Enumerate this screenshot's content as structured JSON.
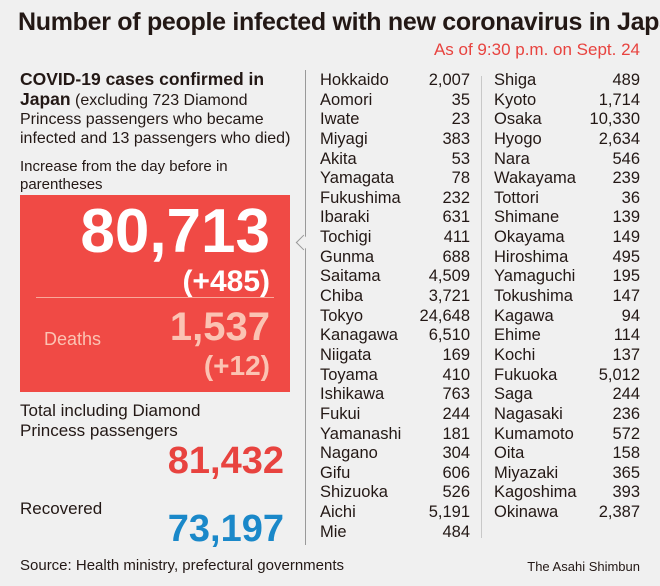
{
  "title": "Number of people infected with new coronavirus in Japan",
  "as_of": "As of 9:30 p.m. on Sept. 24",
  "intro": {
    "heading": "COVID-19 cases confirmed in Japan",
    "detail": "(excluding 723 Diamond Princess passengers who became infected and 13 passengers who died)"
  },
  "note": "Increase from the day before in parentheses",
  "summary": {
    "total": "80,713",
    "total_increase": "(+485)",
    "deaths_label": "Deaths",
    "deaths": "1,537",
    "deaths_increase": "(+12)",
    "including_label": "Total including Diamond Princess passengers",
    "including_total": "81,432",
    "recovered_label": "Recovered",
    "recovered": "73,197"
  },
  "colors": {
    "red": "#f04a45",
    "accent_red": "#e8433f",
    "blue": "#1a88c9",
    "background": "#f0f0f0"
  },
  "prefectures_col1": [
    {
      "name": "Hokkaido",
      "cases": "2,007"
    },
    {
      "name": "Aomori",
      "cases": "35"
    },
    {
      "name": "Iwate",
      "cases": "23"
    },
    {
      "name": "Miyagi",
      "cases": "383"
    },
    {
      "name": "Akita",
      "cases": "53"
    },
    {
      "name": "Yamagata",
      "cases": "78"
    },
    {
      "name": "Fukushima",
      "cases": "232"
    },
    {
      "name": "Ibaraki",
      "cases": "631"
    },
    {
      "name": "Tochigi",
      "cases": "411"
    },
    {
      "name": "Gunma",
      "cases": "688"
    },
    {
      "name": "Saitama",
      "cases": "4,509"
    },
    {
      "name": "Chiba",
      "cases": "3,721"
    },
    {
      "name": "Tokyo",
      "cases": "24,648"
    },
    {
      "name": "Kanagawa",
      "cases": "6,510"
    },
    {
      "name": "Niigata",
      "cases": "169"
    },
    {
      "name": "Toyama",
      "cases": "410"
    },
    {
      "name": "Ishikawa",
      "cases": "763"
    },
    {
      "name": "Fukui",
      "cases": "244"
    },
    {
      "name": "Yamanashi",
      "cases": "181"
    },
    {
      "name": "Nagano",
      "cases": "304"
    },
    {
      "name": "Gifu",
      "cases": "606"
    },
    {
      "name": "Shizuoka",
      "cases": "526"
    },
    {
      "name": "Aichi",
      "cases": "5,191"
    },
    {
      "name": "Mie",
      "cases": "484"
    }
  ],
  "prefectures_col2": [
    {
      "name": "Shiga",
      "cases": "489"
    },
    {
      "name": "Kyoto",
      "cases": "1,714"
    },
    {
      "name": "Osaka",
      "cases": "10,330"
    },
    {
      "name": "Hyogo",
      "cases": "2,634"
    },
    {
      "name": "Nara",
      "cases": "546"
    },
    {
      "name": "Wakayama",
      "cases": "239"
    },
    {
      "name": "Tottori",
      "cases": "36"
    },
    {
      "name": "Shimane",
      "cases": "139"
    },
    {
      "name": "Okayama",
      "cases": "149"
    },
    {
      "name": "Hiroshima",
      "cases": "495"
    },
    {
      "name": "Yamaguchi",
      "cases": "195"
    },
    {
      "name": "Tokushima",
      "cases": "147"
    },
    {
      "name": "Kagawa",
      "cases": "94"
    },
    {
      "name": "Ehime",
      "cases": "114"
    },
    {
      "name": "Kochi",
      "cases": "137"
    },
    {
      "name": "Fukuoka",
      "cases": "5,012"
    },
    {
      "name": "Saga",
      "cases": "244"
    },
    {
      "name": "Nagasaki",
      "cases": "236"
    },
    {
      "name": "Kumamoto",
      "cases": "572"
    },
    {
      "name": "Oita",
      "cases": "158"
    },
    {
      "name": "Miyazaki",
      "cases": "365"
    },
    {
      "name": "Kagoshima",
      "cases": "393"
    },
    {
      "name": "Okinawa",
      "cases": "2,387"
    }
  ],
  "source": "Source: Health ministry, prefectural governments",
  "credit": "The Asahi Shimbun"
}
